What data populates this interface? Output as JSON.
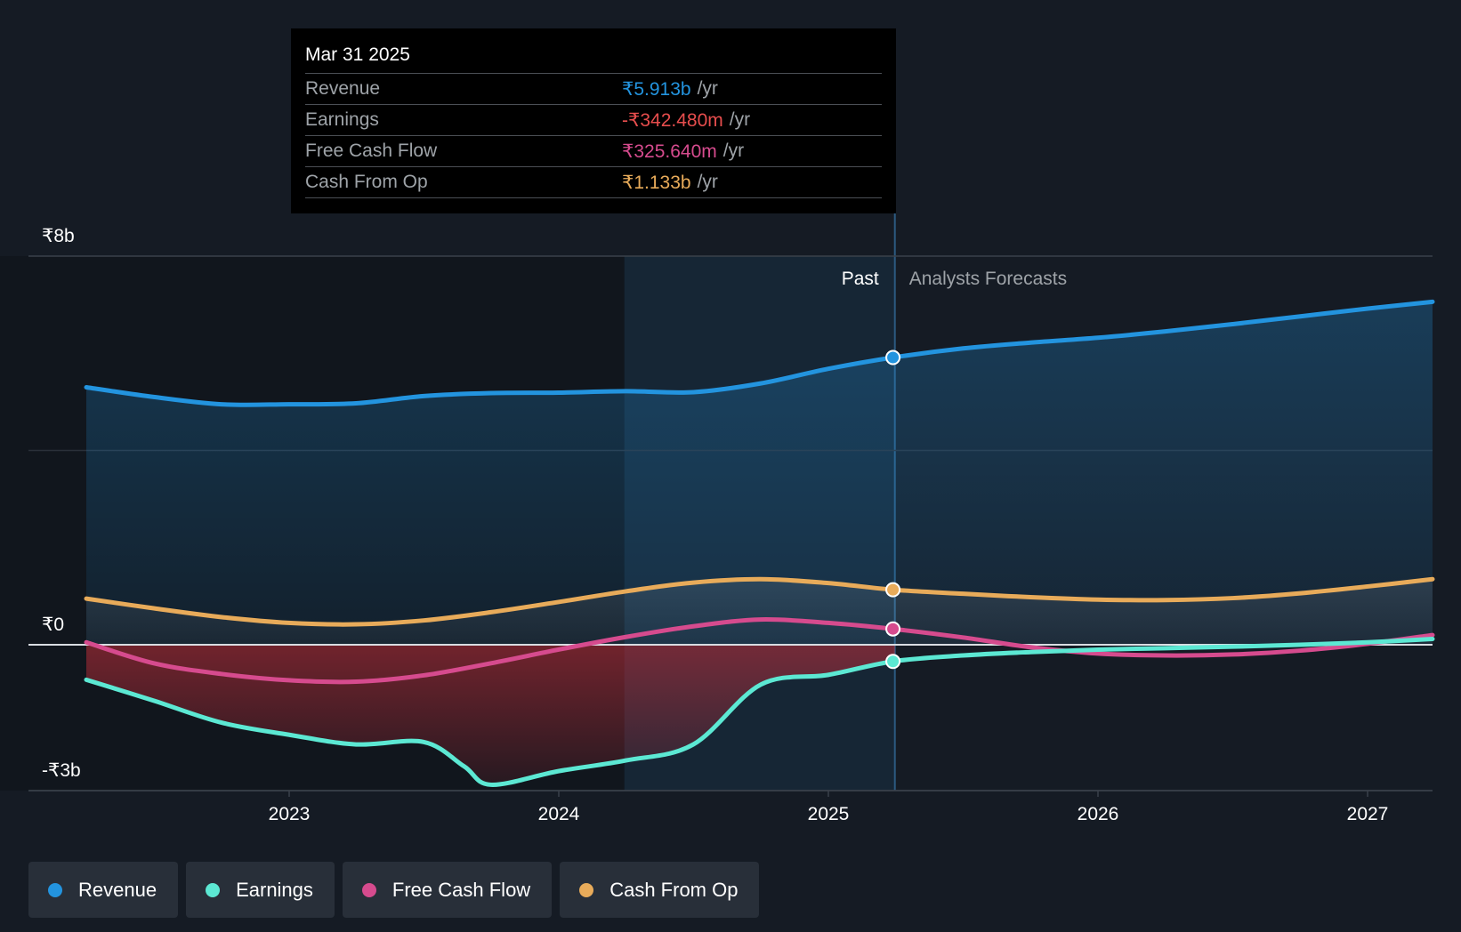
{
  "tooltip": {
    "date": "Mar 31 2025",
    "unit": "/yr",
    "rows": [
      {
        "label": "Revenue",
        "value": "₹5.913b",
        "color": "#2394df"
      },
      {
        "label": "Earnings",
        "value": "-₹342.480m",
        "color": "#e64d4d"
      },
      {
        "label": "Free Cash Flow",
        "value": "₹325.640m",
        "color": "#d64b8e"
      },
      {
        "label": "Cash From Op",
        "value": "₹1.133b",
        "color": "#e8ab5a"
      }
    ]
  },
  "legend": [
    {
      "label": "Revenue",
      "color": "#2394df"
    },
    {
      "label": "Earnings",
      "color": "#5ce8d3"
    },
    {
      "label": "Free Cash Flow",
      "color": "#d64b8e"
    },
    {
      "label": "Cash From Op",
      "color": "#e8ab5a"
    }
  ],
  "chart_data": {
    "type": "line",
    "y_tick_labels": [
      "₹8b",
      "₹0",
      "-₹3b"
    ],
    "y_ticks": [
      8,
      0,
      -3
    ],
    "ylim": [
      -3,
      8
    ],
    "xlim": [
      2022.22,
      2027.24
    ],
    "x_ticks": [
      2023,
      2024,
      2025,
      2026,
      2027
    ],
    "x_tick_labels": [
      "2023",
      "2024",
      "2025",
      "2026",
      "2027"
    ],
    "past_label": "Past",
    "forecast_label": "Analysts Forecasts",
    "divider_x": 2025.24,
    "highlight_start_x": 2024.24,
    "series": [
      {
        "name": "Revenue",
        "color": "#2394df",
        "points": [
          [
            2022.25,
            5.3
          ],
          [
            2022.5,
            5.1
          ],
          [
            2022.75,
            4.95
          ],
          [
            2023.0,
            4.95
          ],
          [
            2023.25,
            4.97
          ],
          [
            2023.5,
            5.12
          ],
          [
            2023.75,
            5.18
          ],
          [
            2024.0,
            5.19
          ],
          [
            2024.25,
            5.22
          ],
          [
            2024.5,
            5.2
          ],
          [
            2024.75,
            5.38
          ],
          [
            2025.0,
            5.68
          ],
          [
            2025.24,
            5.913
          ],
          [
            2025.5,
            6.1
          ],
          [
            2025.75,
            6.22
          ],
          [
            2026.0,
            6.32
          ],
          [
            2026.25,
            6.45
          ],
          [
            2026.5,
            6.6
          ],
          [
            2026.75,
            6.76
          ],
          [
            2027.0,
            6.92
          ],
          [
            2027.24,
            7.06
          ]
        ]
      },
      {
        "name": "Cash From Op",
        "color": "#e8ab5a",
        "points": [
          [
            2022.25,
            0.95
          ],
          [
            2022.5,
            0.75
          ],
          [
            2022.75,
            0.57
          ],
          [
            2023.0,
            0.45
          ],
          [
            2023.25,
            0.42
          ],
          [
            2023.5,
            0.5
          ],
          [
            2023.75,
            0.67
          ],
          [
            2024.0,
            0.88
          ],
          [
            2024.25,
            1.1
          ],
          [
            2024.5,
            1.28
          ],
          [
            2024.75,
            1.35
          ],
          [
            2025.0,
            1.27
          ],
          [
            2025.24,
            1.133
          ],
          [
            2025.5,
            1.05
          ],
          [
            2025.75,
            0.98
          ],
          [
            2026.0,
            0.93
          ],
          [
            2026.25,
            0.92
          ],
          [
            2026.5,
            0.96
          ],
          [
            2026.75,
            1.06
          ],
          [
            2027.0,
            1.2
          ],
          [
            2027.24,
            1.35
          ]
        ]
      },
      {
        "name": "Free Cash Flow",
        "color": "#d64b8e",
        "points": [
          [
            2022.25,
            0.05
          ],
          [
            2022.5,
            -0.38
          ],
          [
            2022.75,
            -0.6
          ],
          [
            2023.0,
            -0.73
          ],
          [
            2023.25,
            -0.76
          ],
          [
            2023.5,
            -0.63
          ],
          [
            2023.75,
            -0.38
          ],
          [
            2024.0,
            -0.1
          ],
          [
            2024.25,
            0.16
          ],
          [
            2024.5,
            0.38
          ],
          [
            2024.75,
            0.52
          ],
          [
            2025.0,
            0.45
          ],
          [
            2025.24,
            0.32564
          ],
          [
            2025.5,
            0.15
          ],
          [
            2025.75,
            -0.05
          ],
          [
            2026.0,
            -0.18
          ],
          [
            2026.25,
            -0.22
          ],
          [
            2026.5,
            -0.2
          ],
          [
            2026.75,
            -0.12
          ],
          [
            2027.0,
            0.02
          ],
          [
            2027.24,
            0.2
          ]
        ]
      },
      {
        "name": "Earnings",
        "color": "#5ce8d3",
        "points": [
          [
            2022.25,
            -0.72
          ],
          [
            2022.5,
            -1.15
          ],
          [
            2022.75,
            -1.6
          ],
          [
            2023.0,
            -1.85
          ],
          [
            2023.25,
            -2.05
          ],
          [
            2023.5,
            -2.0
          ],
          [
            2023.65,
            -2.5
          ],
          [
            2023.75,
            -2.88
          ],
          [
            2024.0,
            -2.6
          ],
          [
            2024.25,
            -2.38
          ],
          [
            2024.5,
            -2.05
          ],
          [
            2024.75,
            -0.82
          ],
          [
            2025.0,
            -0.62
          ],
          [
            2025.24,
            -0.34248
          ],
          [
            2025.5,
            -0.22
          ],
          [
            2025.75,
            -0.15
          ],
          [
            2026.0,
            -0.1
          ],
          [
            2026.25,
            -0.07
          ],
          [
            2026.5,
            -0.04
          ],
          [
            2026.75,
            0.0
          ],
          [
            2027.0,
            0.05
          ],
          [
            2027.24,
            0.12
          ]
        ]
      }
    ]
  }
}
